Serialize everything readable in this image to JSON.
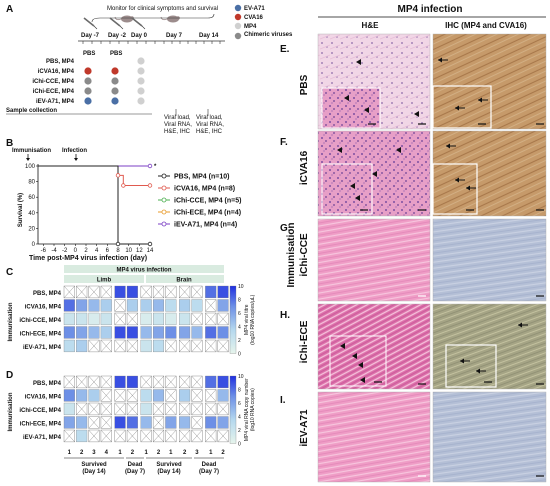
{
  "panel_letters": {
    "a": "A",
    "b": "B",
    "c": "C",
    "d": "D",
    "e": "E.",
    "f": "F.",
    "g": "G.",
    "h": "H.",
    "i": "I."
  },
  "panel_a": {
    "title": "Monitor for clinical symptoms and survival",
    "days": [
      "Day -7",
      "Day -2",
      "Day 0",
      "Day 7",
      "Day 14"
    ],
    "groups": [
      "PBS, MP4",
      "iCVA16, MP4",
      "iChi-CCE, MP4",
      "iChi-ECE, MP4",
      "iEV-A71, MP4"
    ],
    "pbs_labels": [
      "PBS",
      "PBS"
    ],
    "legend": [
      {
        "label": "EV-A71",
        "color": "#4a6fa5"
      },
      {
        "label": "CVA16",
        "color": "#c0392b"
      },
      {
        "label": "MP4",
        "color": "#d0d0d0"
      },
      {
        "label": "Chimeric viruses",
        "color": "#8a8a8a"
      }
    ],
    "sample_collection": "Sample collection",
    "collect_day7": [
      "Viral load,",
      "Viral RNA,",
      "H&E, IHC"
    ],
    "collect_day14": [
      "Viral load,",
      "Viral RNA,",
      "H&E, IHC"
    ]
  },
  "panel_b": {
    "annotations": [
      "Immunisation",
      "Infection"
    ],
    "ylabel": "Survival (%)",
    "xlabel": "Time post-MP4 virus infection (day)",
    "xticks": [
      "-6",
      "-4",
      "-2",
      "0",
      "2",
      "4",
      "6",
      "8",
      "10",
      "12",
      "14"
    ],
    "yticks": [
      "0",
      "20",
      "40",
      "60",
      "80",
      "100"
    ],
    "legend": [
      {
        "label": "PBS, MP4 (n=10)",
        "color": "#222222"
      },
      {
        "label": "iCVA16, MP4 (n=8)",
        "color": "#e05a4f"
      },
      {
        "label": "iChi-CCE, MP4 (n=5)",
        "color": "#4caf50"
      },
      {
        "label": "iChi-ECE, MP4 (n=4)",
        "color": "#e89b2b"
      },
      {
        "label": "iEV-A71, MP4 (n=4)",
        "color": "#7b3fc4"
      }
    ],
    "significance": "*"
  },
  "chart_data": [
    {
      "type": "line",
      "xlabel": "Time post-MP4 virus infection (day)",
      "ylabel": "Survival (%)",
      "xlim": [
        -7,
        14
      ],
      "ylim": [
        0,
        100
      ],
      "series": [
        {
          "name": "PBS, MP4 (n=10)",
          "x": [
            -7,
            8,
            8,
            14
          ],
          "y": [
            100,
            100,
            0,
            0
          ]
        },
        {
          "name": "iCVA16, MP4 (n=8)",
          "x": [
            -7,
            8,
            8,
            9,
            9,
            14
          ],
          "y": [
            100,
            100,
            88,
            88,
            75,
            75
          ]
        },
        {
          "name": "iChi-CCE, MP4 (n=5)",
          "x": [
            -7,
            14
          ],
          "y": [
            100,
            100
          ]
        },
        {
          "name": "iChi-ECE, MP4 (n=4)",
          "x": [
            -7,
            14
          ],
          "y": [
            100,
            100
          ]
        },
        {
          "name": "iEV-A71, MP4 (n=4)",
          "x": [
            -7,
            14
          ],
          "y": [
            100,
            100
          ]
        }
      ]
    },
    {
      "type": "heatmap",
      "title": "MP4 virus infection",
      "column_groups": [
        "Limb",
        "Brain"
      ],
      "rows": [
        "PBS, MP4",
        "iCVA16, MP4",
        "iChi-CCE, MP4",
        "iChi-ECE, MP4",
        "iEV-A71, MP4"
      ],
      "columns": [
        "1",
        "2",
        "3",
        "4",
        "1",
        "2",
        "1",
        "2",
        "1",
        "2",
        "3",
        "1",
        "2"
      ],
      "colorbar_label": [
        "MP4 viral titre",
        "(log10 RNA copies/µL)"
      ],
      "colorbar_ticks": [
        "0",
        "2",
        "4",
        "6",
        "8",
        "10"
      ],
      "values": [
        [
          null,
          null,
          null,
          null,
          9,
          9,
          null,
          null,
          null,
          null,
          null,
          8,
          9
        ],
        [
          8,
          6,
          5,
          4,
          null,
          4,
          4,
          5,
          3,
          4,
          3,
          null,
          6
        ],
        [
          2,
          2,
          1,
          2,
          null,
          null,
          1,
          2,
          1,
          2,
          null,
          null,
          null
        ],
        [
          7,
          6,
          5,
          4,
          9,
          9,
          5,
          6,
          7,
          6,
          5,
          8,
          7
        ],
        [
          3,
          4,
          null,
          null,
          null,
          null,
          2,
          3,
          null,
          null,
          null,
          null,
          null
        ]
      ]
    },
    {
      "type": "heatmap",
      "rows": [
        "PBS, MP4",
        "iCVA16, MP4",
        "iChi-CCE, MP4",
        "iChi-ECE, MP4",
        "iEV-A71, MP4"
      ],
      "columns": [
        "1",
        "2",
        "3",
        "4",
        "1",
        "2",
        "1",
        "2",
        "1",
        "2",
        "3",
        "1",
        "2"
      ],
      "colorbar_label": [
        "MP4 viral RNA copy number",
        "(log10 RNA copies)"
      ],
      "colorbar_ticks": [
        "0",
        "2",
        "4",
        "6",
        "8",
        "10"
      ],
      "x_groups": [
        "Survived (Day 14)",
        "Dead (Day 7)",
        "Survived (Day 14)",
        "Dead (Day 7)"
      ],
      "values": [
        [
          null,
          null,
          null,
          null,
          9,
          9,
          null,
          null,
          null,
          null,
          null,
          8,
          9
        ],
        [
          7,
          5,
          4,
          null,
          null,
          null,
          3,
          5,
          null,
          4,
          null,
          null,
          5
        ],
        [
          2,
          null,
          null,
          null,
          null,
          null,
          2,
          null,
          null,
          null,
          null,
          null,
          null
        ],
        [
          6,
          5,
          null,
          null,
          9,
          8,
          5,
          null,
          6,
          5,
          null,
          7,
          6
        ],
        [
          null,
          3,
          null,
          null,
          null,
          null,
          null,
          null,
          null,
          null,
          null,
          null,
          null
        ]
      ]
    }
  ],
  "panel_c": {
    "title": "MP4 virus infection",
    "groups": [
      "Limb",
      "Brain"
    ],
    "side_label": "Immunisation"
  },
  "panel_d": {
    "side_label": "Immunisation",
    "x_groups": [
      [
        "Survived",
        "(Day 14)"
      ],
      [
        "Dead",
        "(Day 7)"
      ],
      [
        "Survived",
        "(Day 14)"
      ],
      [
        "Dead",
        "(Day 7)"
      ]
    ]
  },
  "histology": {
    "title": "MP4 infection",
    "columns": [
      "H&E",
      "IHC (MP4 and CVA16)"
    ],
    "rows": [
      "PBS",
      "iCVA16",
      "iChi-CCE",
      "iChi-ECE",
      "iEV-A71"
    ],
    "side_label": "Immunisation"
  }
}
